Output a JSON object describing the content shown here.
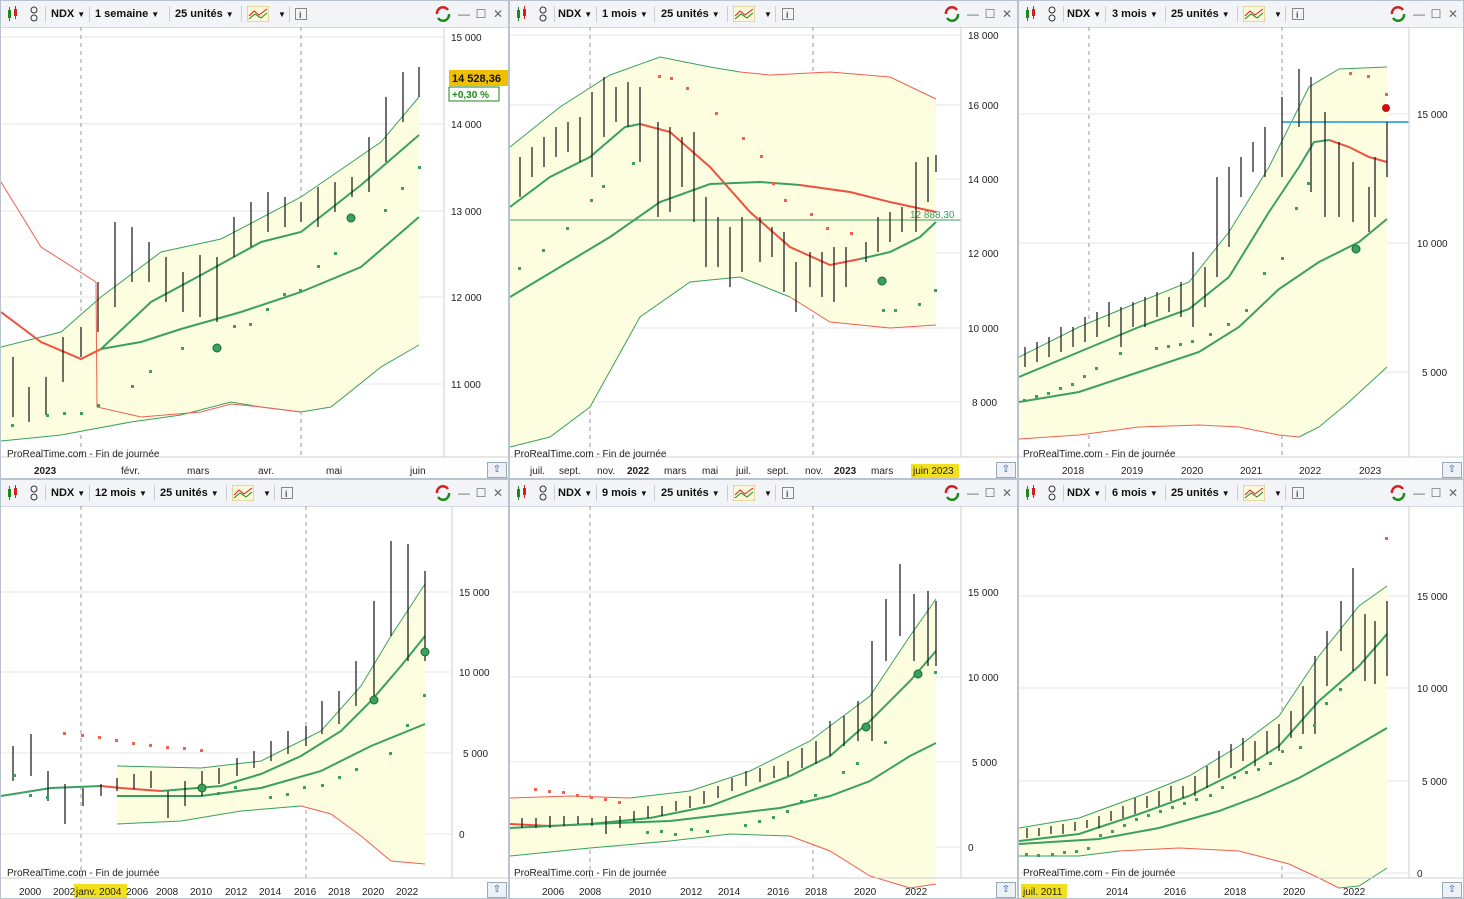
{
  "panels": [
    {
      "symbol": "NDX",
      "period": "1 semaine",
      "units": "25 unités",
      "footer": "ProRealTime.com - Fin de journée",
      "price_label": "14 528,36",
      "change_label": "+0,30 %",
      "y_ticks": [
        "15 000",
        "14 000",
        "13 000",
        "12 000",
        "11 000"
      ],
      "x_ticks": [
        "2023",
        "févr.",
        "mars",
        "avr.",
        "mai",
        "juin"
      ],
      "colors": {
        "accent": "#f0c000",
        "change": "#1a8a1a"
      }
    },
    {
      "symbol": "NDX",
      "period": "1 mois",
      "units": "25 unités",
      "footer": "ProRealTime.com - Fin de journée",
      "level_label": "12 888,30",
      "y_ticks": [
        "18 000",
        "16 000",
        "14 000",
        "12 000",
        "10 000",
        "8 000"
      ],
      "x_ticks": [
        "juil.",
        "sept.",
        "nov.",
        "2022",
        "mars",
        "mai",
        "juil.",
        "sept.",
        "nov.",
        "2023",
        "mars",
        "juin 2023"
      ]
    },
    {
      "symbol": "NDX",
      "period": "3 mois",
      "units": "25 unités",
      "footer": "ProRealTime.com - Fin de journée",
      "y_ticks": [
        "15 000",
        "10 000",
        "5 000"
      ],
      "x_ticks": [
        "2018",
        "2019",
        "2020",
        "2021",
        "2022",
        "2023"
      ]
    },
    {
      "symbol": "NDX",
      "period": "12 mois",
      "units": "25 unités",
      "footer": "ProRealTime.com - Fin de journée",
      "y_ticks": [
        "15 000",
        "10 000",
        "5 000",
        "0"
      ],
      "x_ticks": [
        "2000",
        "2002",
        "janv. 2004",
        "2006",
        "2008",
        "2010",
        "2012",
        "2014",
        "2016",
        "2018",
        "2020",
        "2022"
      ]
    },
    {
      "symbol": "NDX",
      "period": "9 mois",
      "units": "25 unités",
      "footer": "ProRealTime.com - Fin de journée",
      "y_ticks": [
        "15 000",
        "10 000",
        "5 000",
        "0"
      ],
      "x_ticks": [
        "2006",
        "2008",
        "2010",
        "2012",
        "2014",
        "2016",
        "2018",
        "2020",
        "2022"
      ]
    },
    {
      "symbol": "NDX",
      "period": "6 mois",
      "units": "25 unités",
      "footer": "ProRealTime.com - Fin de journée",
      "y_ticks": [
        "15 000",
        "10 000",
        "5 000",
        "0"
      ],
      "x_ticks": [
        "juil. 2011",
        "2014",
        "2016",
        "2018",
        "2020",
        "2022"
      ]
    }
  ]
}
